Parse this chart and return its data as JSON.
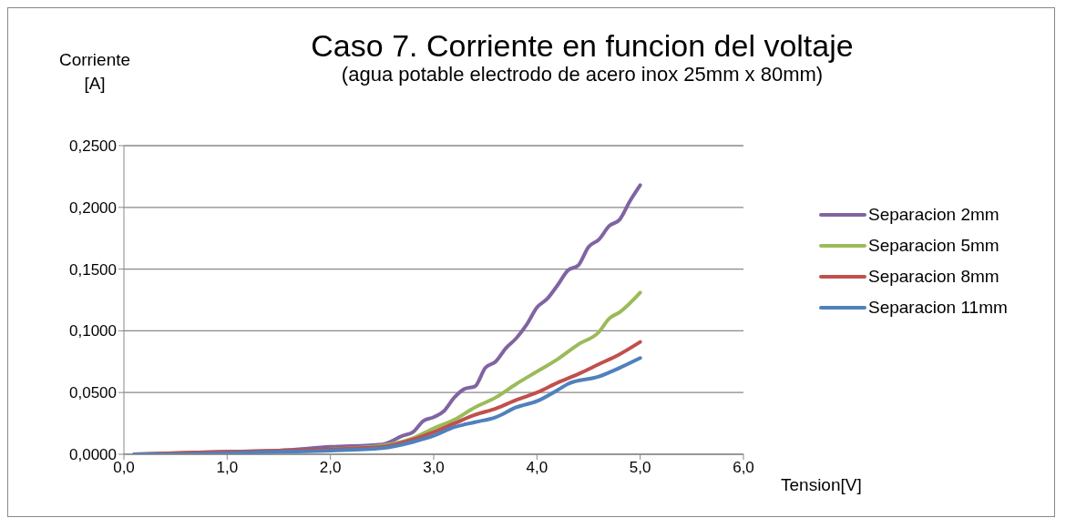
{
  "chart_data": {
    "type": "line",
    "title": "Caso 7. Corriente en funcion del voltaje",
    "subtitle": "(agua potable electrodo de acero inox 25mm x 80mm)",
    "xlabel": "Tension[V]",
    "ylabel": "Corriente [A]",
    "xlim": [
      0,
      6
    ],
    "xticks": [
      {
        "value": 0,
        "label": "0,0"
      },
      {
        "value": 1,
        "label": "1,0"
      },
      {
        "value": 2,
        "label": "2,0"
      },
      {
        "value": 3,
        "label": "3,0"
      },
      {
        "value": 4,
        "label": "4,0"
      },
      {
        "value": 5,
        "label": "5,0"
      },
      {
        "value": 6,
        "label": "6,0"
      }
    ],
    "ylim": [
      0,
      0.25
    ],
    "yticks": [
      {
        "value": 0,
        "label": "0,0000"
      },
      {
        "value": 0.05,
        "label": "0,0500"
      },
      {
        "value": 0.1,
        "label": "0,1000"
      },
      {
        "value": 0.15,
        "label": "0,1500"
      },
      {
        "value": 0.2,
        "label": "0,2000"
      },
      {
        "value": 0.25,
        "label": "0,2500"
      }
    ],
    "grid": "y",
    "legend": "right",
    "marker": "none",
    "line_style": "solid",
    "series": [
      {
        "name": "Separacion 2mm",
        "color": "#8064a2",
        "x": [
          0.1,
          0.5,
          1.0,
          1.5,
          2.0,
          2.5,
          2.7,
          2.8,
          2.9,
          3.0,
          3.1,
          3.2,
          3.3,
          3.4,
          3.5,
          3.6,
          3.7,
          3.8,
          3.9,
          4.0,
          4.1,
          4.2,
          4.3,
          4.4,
          4.5,
          4.6,
          4.7,
          4.8,
          4.9,
          5.0
        ],
        "values": [
          0,
          0.001,
          0.002,
          0.003,
          0.006,
          0.008,
          0.015,
          0.018,
          0.027,
          0.03,
          0.035,
          0.046,
          0.053,
          0.055,
          0.07,
          0.075,
          0.086,
          0.094,
          0.105,
          0.119,
          0.126,
          0.137,
          0.149,
          0.153,
          0.168,
          0.174,
          0.185,
          0.19,
          0.205,
          0.218
        ]
      },
      {
        "name": "Separacion 5mm",
        "color": "#9bbb59",
        "x": [
          2.0,
          2.5,
          2.8,
          3.0,
          3.2,
          3.4,
          3.6,
          3.8,
          4.0,
          4.2,
          4.4,
          4.6,
          4.7,
          4.8,
          5.0
        ],
        "values": [
          0.004,
          0.007,
          0.013,
          0.021,
          0.028,
          0.038,
          0.046,
          0.057,
          0.067,
          0.077,
          0.089,
          0.099,
          0.11,
          0.115,
          0.131
        ]
      },
      {
        "name": "Separacion 8mm",
        "color": "#c0504d",
        "x": [
          0.1,
          0.5,
          1.0,
          1.5,
          2.0,
          2.5,
          2.8,
          3.0,
          3.2,
          3.4,
          3.6,
          3.8,
          4.0,
          4.2,
          4.4,
          4.6,
          4.8,
          5.0
        ],
        "values": [
          0,
          0.001,
          0.002,
          0.003,
          0.004,
          0.006,
          0.012,
          0.018,
          0.025,
          0.032,
          0.037,
          0.044,
          0.05,
          0.058,
          0.065,
          0.073,
          0.081,
          0.091
        ]
      },
      {
        "name": "Separacion 11mm",
        "color": "#4f81bd",
        "x": [
          0.1,
          0.5,
          1.0,
          1.5,
          2.0,
          2.5,
          2.8,
          3.0,
          3.2,
          3.4,
          3.6,
          3.8,
          4.0,
          4.2,
          4.3,
          4.6,
          4.8,
          5.0
        ],
        "values": [
          0,
          0,
          0.001,
          0.002,
          0.003,
          0.005,
          0.01,
          0.015,
          0.022,
          0.026,
          0.03,
          0.038,
          0.043,
          0.052,
          0.057,
          0.063,
          0.07,
          0.078
        ]
      }
    ]
  }
}
